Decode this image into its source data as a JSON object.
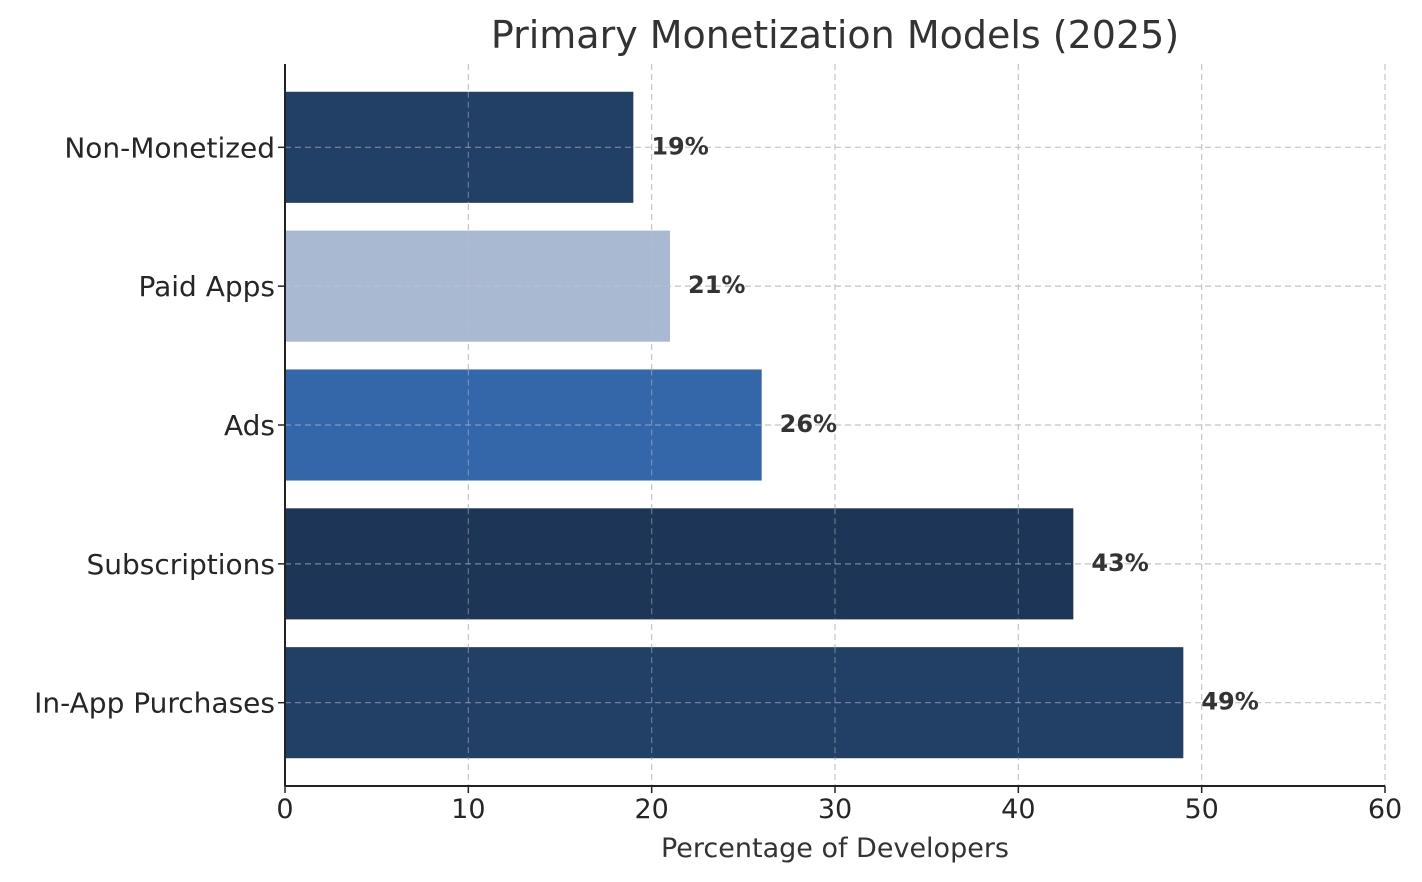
{
  "chart_data": {
    "type": "bar",
    "orientation": "horizontal",
    "title": "Primary Monetization Models (2025)",
    "xlabel": "Percentage of Developers",
    "ylabel": "",
    "xlim": [
      0,
      60
    ],
    "xticks": [
      0,
      10,
      20,
      30,
      40,
      50,
      60
    ],
    "grid": true,
    "categories": [
      "In-App Purchases",
      "Subscriptions",
      "Ads",
      "Paid Apps",
      "Non-Monetized"
    ],
    "values": [
      49,
      43,
      26,
      21,
      19
    ],
    "value_labels": [
      "49%",
      "43%",
      "26%",
      "21%",
      "19%"
    ],
    "colors": [
      "#223f66",
      "#1d3557",
      "#3466aa",
      "#a8b9d1",
      "#223f66"
    ]
  }
}
